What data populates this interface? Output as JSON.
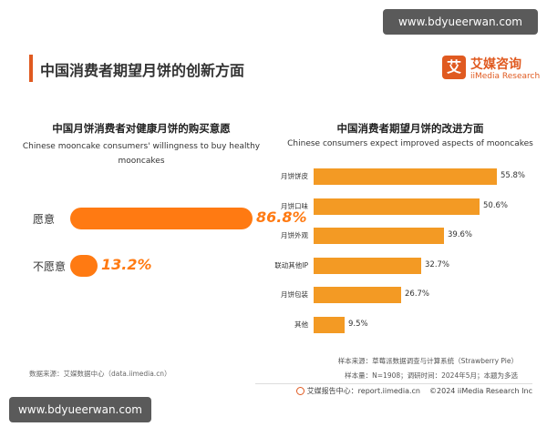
{
  "watermark": "www.bdyueerwan.com",
  "header": {
    "title": "中国消费者期望月饼的创新方面",
    "brand_logo_char": "艾",
    "brand_name": "艾媒咨询",
    "brand_sub": "iiMedia Research"
  },
  "chart_data": [
    {
      "type": "bar",
      "orientation": "horizontal",
      "title": "中国月饼消费者对健康月饼的购买意愿",
      "subtitle": "Chinese mooncake consumers' willingness to buy healthy mooncakes",
      "categories": [
        "愿意",
        "不愿意"
      ],
      "values": [
        86.8,
        13.2
      ],
      "value_labels": [
        "86.8%",
        "13.2%"
      ],
      "unit": "%",
      "color": "#ff7a12"
    },
    {
      "type": "bar",
      "orientation": "horizontal",
      "title": "中国消费者期望月饼的改进方面",
      "subtitle": "Chinese consumers expect improved aspects of mooncakes",
      "categories": [
        "月饼饼皮",
        "月饼口味",
        "月饼外观",
        "联动其他IP",
        "月饼包装",
        "其他"
      ],
      "values": [
        55.8,
        50.6,
        39.6,
        32.7,
        26.7,
        9.5
      ],
      "value_labels": [
        "55.8%",
        "50.6%",
        "39.6%",
        "32.7%",
        "26.7%",
        "9.5%"
      ],
      "unit": "%",
      "color": "#f39a24"
    }
  ],
  "footer": {
    "data_source": "数据来源：艾媒数据中心（data.iimedia.cn）",
    "sample_source": "样本来源：草莓派数据调查与计算系统（Strawberry Pie）",
    "sample_size": "样本量：N=1908；调研时间：2024年5月；本题为多选",
    "report_center": "艾媒报告中心：report.iimedia.cn",
    "copyright": "©2024  iiMedia Research Inc"
  }
}
